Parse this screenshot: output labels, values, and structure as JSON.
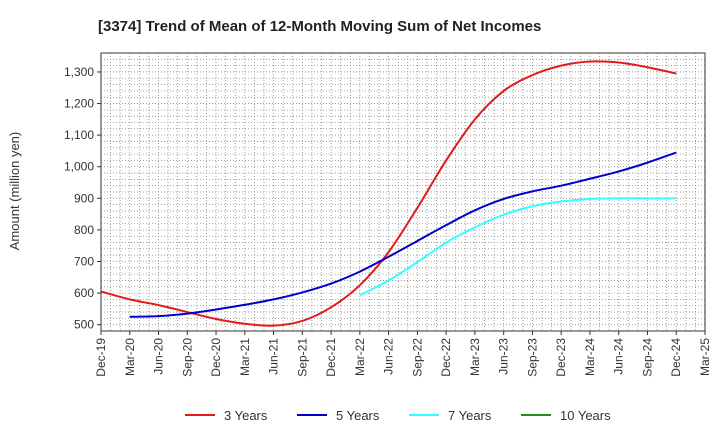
{
  "chart_data": {
    "type": "line",
    "title": "[3374]  Trend of Mean of 12-Month Moving Sum of Net Incomes",
    "xlabel": "",
    "ylabel": "Amount (million yen)",
    "ylim": [
      480,
      1360
    ],
    "yticks": [
      500,
      600,
      700,
      800,
      900,
      1000,
      1100,
      1200,
      1300
    ],
    "ytick_labels": [
      "500",
      "600",
      "700",
      "800",
      "900",
      "1,000",
      "1,100",
      "1,200",
      "1,300"
    ],
    "x_ticks": [
      "Dec-19",
      "Mar-20",
      "Jun-20",
      "Sep-20",
      "Dec-20",
      "Mar-21",
      "Jun-21",
      "Sep-21",
      "Dec-21",
      "Mar-22",
      "Jun-22",
      "Sep-22",
      "Dec-22",
      "Mar-23",
      "Jun-23",
      "Sep-23",
      "Dec-23",
      "Mar-24",
      "Jun-24",
      "Sep-24",
      "Dec-24",
      "Mar-25"
    ],
    "grid": true,
    "legend_position": "bottom",
    "series": [
      {
        "name": "3 Years",
        "color": "#e31a1c",
        "x": [
          "Dec-19",
          "Mar-20",
          "Jun-20",
          "Sep-20",
          "Dec-20",
          "Mar-21",
          "Jun-21",
          "Sep-21",
          "Dec-21",
          "Mar-22",
          "Jun-22",
          "Sep-22",
          "Dec-22",
          "Mar-23",
          "Jun-23",
          "Sep-23",
          "Dec-23",
          "Mar-24",
          "Jun-24",
          "Sep-24",
          "Dec-24"
        ],
        "values": [
          605,
          580,
          562,
          540,
          518,
          503,
          497,
          512,
          555,
          625,
          730,
          870,
          1020,
          1150,
          1240,
          1290,
          1320,
          1333,
          1330,
          1315,
          1295
        ]
      },
      {
        "name": "5 Years",
        "color": "#0000cc",
        "x": [
          "Mar-20",
          "Jun-20",
          "Sep-20",
          "Dec-20",
          "Mar-21",
          "Jun-21",
          "Sep-21",
          "Dec-21",
          "Mar-22",
          "Jun-22",
          "Sep-22",
          "Dec-22",
          "Mar-23",
          "Jun-23",
          "Sep-23",
          "Dec-23",
          "Mar-24",
          "Jun-24",
          "Sep-24",
          "Dec-24"
        ],
        "values": [
          525,
          527,
          535,
          548,
          563,
          580,
          602,
          630,
          668,
          715,
          765,
          815,
          862,
          898,
          922,
          940,
          962,
          985,
          1013,
          1045
        ]
      },
      {
        "name": "7 Years",
        "color": "#33ffff",
        "x": [
          "Mar-22",
          "Jun-22",
          "Sep-22",
          "Dec-22",
          "Mar-23",
          "Jun-23",
          "Sep-23",
          "Dec-23",
          "Mar-24",
          "Jun-24",
          "Sep-24",
          "Dec-24"
        ],
        "values": [
          593,
          640,
          698,
          760,
          808,
          848,
          875,
          890,
          898,
          900,
          900,
          900
        ]
      },
      {
        "name": "10 Years",
        "color": "#228b22",
        "x": [],
        "values": []
      }
    ]
  }
}
